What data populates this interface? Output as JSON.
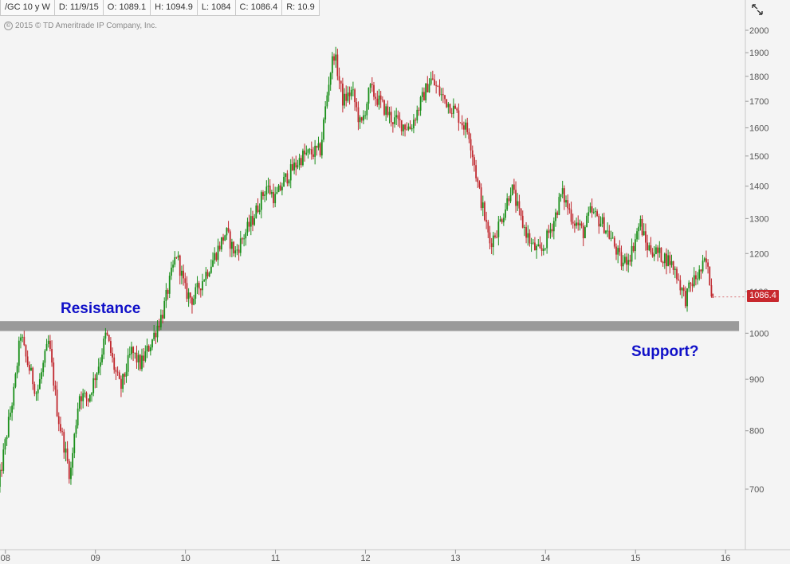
{
  "header": {
    "symbol": "/GC 10 y W",
    "date": "D: 11/9/15",
    "open": "O: 1089.1",
    "high": "H: 1094.9",
    "low": "L: 1084",
    "close": "C: 1086.4",
    "range": "R: 10.9"
  },
  "copyright": "2015 © TD Ameritrade IP Company, Inc.",
  "last_price_label": "1086.4",
  "icons": {
    "expand": "expand-arrows-icon",
    "copyright": "copyright-circle-icon"
  },
  "colors": {
    "up": "#1a8f1a",
    "down": "#c0282e",
    "band": "#9a9a9a",
    "annotation": "#1010c8"
  },
  "chart_data": {
    "type": "candlestick",
    "title": "",
    "xlabel": "",
    "ylabel": "",
    "y_scale": "log",
    "ylim": [
      630,
      2060
    ],
    "xlim": [
      2007.94,
      2016.22
    ],
    "y_ticks": [
      700,
      800,
      900,
      1000,
      1100,
      1200,
      1300,
      1400,
      1500,
      1600,
      1700,
      1800,
      1900,
      2000
    ],
    "x_ticks": [
      {
        "x": 2008,
        "label": "08"
      },
      {
        "x": 2009,
        "label": "09"
      },
      {
        "x": 2010,
        "label": "10"
      },
      {
        "x": 2011,
        "label": "11"
      },
      {
        "x": 2012,
        "label": "12"
      },
      {
        "x": 2013,
        "label": "13"
      },
      {
        "x": 2014,
        "label": "14"
      },
      {
        "x": 2015,
        "label": "15"
      },
      {
        "x": 2016,
        "label": "16"
      }
    ],
    "price_path": [
      [
        2007.92,
        700
      ],
      [
        2008.1,
        880
      ],
      [
        2008.17,
        1000
      ],
      [
        2008.22,
        950
      ],
      [
        2008.35,
        870
      ],
      [
        2008.48,
        980
      ],
      [
        2008.58,
        830
      ],
      [
        2008.72,
        720
      ],
      [
        2008.82,
        870
      ],
      [
        2008.92,
        860
      ],
      [
        2009.05,
        940
      ],
      [
        2009.12,
        1000
      ],
      [
        2009.2,
        930
      ],
      [
        2009.28,
        880
      ],
      [
        2009.4,
        960
      ],
      [
        2009.5,
        930
      ],
      [
        2009.62,
        980
      ],
      [
        2009.75,
        1050
      ],
      [
        2009.9,
        1200
      ],
      [
        2010.0,
        1100
      ],
      [
        2010.08,
        1080
      ],
      [
        2010.3,
        1180
      ],
      [
        2010.45,
        1260
      ],
      [
        2010.55,
        1200
      ],
      [
        2010.75,
        1300
      ],
      [
        2010.9,
        1400
      ],
      [
        2011.0,
        1360
      ],
      [
        2011.1,
        1420
      ],
      [
        2011.3,
        1500
      ],
      [
        2011.5,
        1520
      ],
      [
        2011.6,
        1800
      ],
      [
        2011.65,
        1900
      ],
      [
        2011.75,
        1700
      ],
      [
        2011.85,
        1740
      ],
      [
        2011.95,
        1600
      ],
      [
        2012.05,
        1750
      ],
      [
        2012.15,
        1700
      ],
      [
        2012.3,
        1630
      ],
      [
        2012.5,
        1600
      ],
      [
        2012.62,
        1700
      ],
      [
        2012.72,
        1790
      ],
      [
        2012.85,
        1720
      ],
      [
        2013.0,
        1660
      ],
      [
        2013.15,
        1580
      ],
      [
        2013.25,
        1400
      ],
      [
        2013.38,
        1230
      ],
      [
        2013.45,
        1260
      ],
      [
        2013.55,
        1330
      ],
      [
        2013.62,
        1400
      ],
      [
        2013.72,
        1300
      ],
      [
        2013.85,
        1220
      ],
      [
        2013.95,
        1200
      ],
      [
        2014.1,
        1300
      ],
      [
        2014.18,
        1380
      ],
      [
        2014.3,
        1300
      ],
      [
        2014.42,
        1260
      ],
      [
        2014.5,
        1320
      ],
      [
        2014.65,
        1280
      ],
      [
        2014.75,
        1230
      ],
      [
        2014.85,
        1170
      ],
      [
        2014.95,
        1200
      ],
      [
        2015.05,
        1290
      ],
      [
        2015.12,
        1220
      ],
      [
        2015.25,
        1200
      ],
      [
        2015.38,
        1180
      ],
      [
        2015.45,
        1150
      ],
      [
        2015.55,
        1080
      ],
      [
        2015.62,
        1120
      ],
      [
        2015.72,
        1150
      ],
      [
        2015.78,
        1180
      ],
      [
        2015.86,
        1086
      ]
    ],
    "annotations": [
      {
        "text": "Resistance"
      },
      {
        "text": "Support?"
      }
    ],
    "band": {
      "from": 1005,
      "to": 1028,
      "x_from": 2007.94,
      "x_to": 2016.15
    },
    "last_price": 1086.4
  }
}
